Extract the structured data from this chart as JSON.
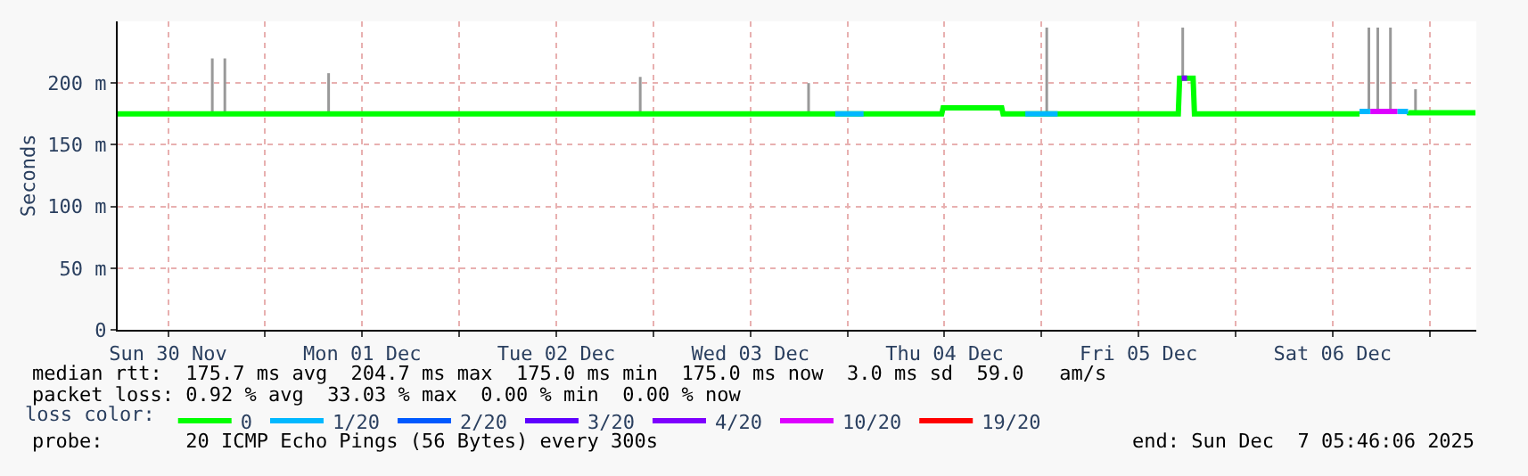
{
  "chart_data": {
    "type": "line",
    "ylabel": "Seconds",
    "legend_title": "loss color:",
    "legend": "bottom",
    "grid": true,
    "marker": "none",
    "line_style": "solid",
    "xlim": [
      "2025-11-30T05:46",
      "2025-12-07T05:46"
    ],
    "xticks": [
      {
        "value": "2025-11-30T12:00",
        "label": "Sun 30 Nov"
      },
      {
        "value": "2025-12-01",
        "label": null
      },
      {
        "value": "2025-12-01T12:00",
        "label": "Mon 01 Dec"
      },
      {
        "value": "2025-12-02",
        "label": null
      },
      {
        "value": "2025-12-02T12:00",
        "label": "Tue 02 Dec"
      },
      {
        "value": "2025-12-03",
        "label": null
      },
      {
        "value": "2025-12-03T12:00",
        "label": "Wed 03 Dec"
      },
      {
        "value": "2025-12-04",
        "label": null
      },
      {
        "value": "2025-12-04T12:00",
        "label": "Thu 04 Dec"
      },
      {
        "value": "2025-12-05",
        "label": null
      },
      {
        "value": "2025-12-05T12:00",
        "label": "Fri 05 Dec"
      },
      {
        "value": "2025-12-06",
        "label": null
      },
      {
        "value": "2025-12-06T12:00",
        "label": "Sat 06 Dec"
      },
      {
        "value": "2025-12-07",
        "label": null
      }
    ],
    "ylim": [
      0,
      250
    ],
    "yticks": [
      0,
      {
        "value": 50,
        "label": "50 m"
      },
      {
        "value": 100,
        "label": "100 m"
      },
      {
        "value": 150,
        "label": "150 m"
      },
      {
        "value": 200,
        "label": "200 m"
      }
    ],
    "series": [
      {
        "color": "#999999",
        "x": [
          "2025-11-30T17:28",
          "2025-11-30T17:28"
        ],
        "values": [
          175,
          220
        ]
      },
      {
        "color": "#999999",
        "x": [
          "2025-11-30T19:01",
          "2025-11-30T19:01"
        ],
        "values": [
          175,
          220
        ]
      },
      {
        "color": "#999999",
        "x": [
          "2025-12-01T07:51",
          "2025-12-01T07:51"
        ],
        "values": [
          175,
          208
        ]
      },
      {
        "color": "#999999",
        "x": [
          "2025-12-02T22:23",
          "2025-12-02T22:23"
        ],
        "values": [
          175,
          205
        ]
      },
      {
        "color": "#999999",
        "x": [
          "2025-12-03T19:12",
          "2025-12-03T19:12"
        ],
        "values": [
          175,
          200
        ]
      },
      {
        "color": "#999999",
        "x": [
          "2025-12-05T00:39",
          "2025-12-05T00:39"
        ],
        "values": [
          175,
          245
        ]
      },
      {
        "color": "#999999",
        "x": [
          "2025-12-05T17:28",
          "2025-12-05T17:28"
        ],
        "values": [
          204,
          245
        ]
      },
      {
        "color": "#999999",
        "x": [
          "2025-12-06T16:29",
          "2025-12-06T16:29"
        ],
        "values": [
          177,
          245
        ]
      },
      {
        "color": "#999999",
        "x": [
          "2025-12-06T17:35",
          "2025-12-06T17:35"
        ],
        "values": [
          177,
          245
        ]
      },
      {
        "color": "#999999",
        "x": [
          "2025-12-06T19:09",
          "2025-12-06T19:09"
        ],
        "values": [
          177,
          245
        ]
      },
      {
        "color": "#999999",
        "x": [
          "2025-12-06T22:15",
          "2025-12-06T22:15"
        ],
        "values": [
          176,
          195
        ]
      },
      {
        "name": "0",
        "color": "#00ff00",
        "x": [
          "2025-11-30T05:46",
          "2025-12-04T11:40",
          "2025-12-04T11:50",
          "2025-12-04T19:05",
          "2025-12-04T19:15",
          "2025-12-05T16:55",
          "2025-12-05T17:05",
          "2025-12-05T18:45",
          "2025-12-05T18:55",
          "2025-12-06T15:20"
        ],
        "values": [
          175,
          175,
          180,
          180,
          175,
          175,
          204,
          204,
          175,
          175
        ]
      },
      {
        "name": "0",
        "color": "#00ff00",
        "x": [
          "2025-12-06T21:20",
          "2025-12-06T21:25",
          "2025-12-07T05:40"
        ],
        "values": [
          177,
          176,
          176
        ]
      },
      {
        "name": "1/20",
        "color": "#00b8ff",
        "x": [
          "2025-12-03T22:30",
          "2025-12-04T02:00"
        ],
        "values": [
          175,
          175
        ]
      },
      {
        "color": "#00b8ff",
        "x": [
          "2025-12-04T22:00",
          "2025-12-05T02:00"
        ],
        "values": [
          175,
          175
        ]
      },
      {
        "color": "#00b8ff",
        "x": [
          "2025-12-06T15:20",
          "2025-12-06T16:40"
        ],
        "values": [
          177,
          177
        ]
      },
      {
        "color": "#00b8ff",
        "x": [
          "2025-12-06T20:00",
          "2025-12-06T21:20"
        ],
        "values": [
          177,
          177
        ]
      },
      {
        "name": "2/20",
        "color": "#0059ff"
      },
      {
        "name": "3/20",
        "color": "#5e00ff"
      },
      {
        "name": "4/20",
        "color": "#7e00ff",
        "x": [
          "2025-12-05T17:20",
          "2025-12-05T18:00"
        ],
        "values": [
          204,
          204
        ]
      },
      {
        "name": "10/20",
        "color": "#dd00ff",
        "x": [
          "2025-12-06T16:40",
          "2025-12-06T20:00"
        ],
        "values": [
          177,
          177
        ]
      },
      {
        "name": "19/20",
        "color": "#ff0000"
      }
    ],
    "annotations": [
      "median rtt:  175.7 ms avg  204.7 ms max  175.0 ms min  175.0 ms now  3.0 ms sd  59.0   am/s",
      "packet loss: 0.92 % avg  33.03 % max  0.00 % min  0.00 % now",
      "probe:       20 ICMP Echo Pings (56 Bytes) every 300s",
      "end: Sun Dec  7 05:46:06 2025"
    ]
  }
}
